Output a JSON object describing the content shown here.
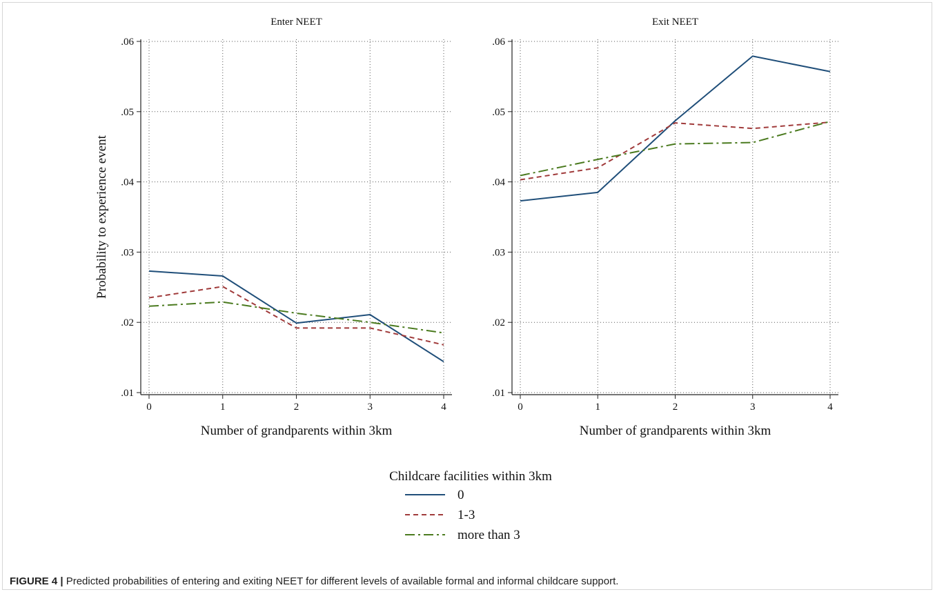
{
  "chart_data": [
    {
      "type": "line",
      "title": "Enter NEET",
      "xlabel": "Number of grandparents within 3km",
      "ylabel": "Probability to experience event",
      "x": [
        0,
        1,
        2,
        3,
        4
      ],
      "xticks": [
        "0",
        "1",
        "2",
        "3",
        "4"
      ],
      "yticks": [
        ".01",
        ".02",
        ".03",
        ".04",
        ".05",
        ".06"
      ],
      "ylim": [
        0.01,
        0.06
      ],
      "grid": true,
      "series": [
        {
          "name": "0",
          "values": [
            0.0273,
            0.0266,
            0.0199,
            0.0211,
            0.0144
          ]
        },
        {
          "name": "1-3",
          "values": [
            0.0235,
            0.0251,
            0.0192,
            0.0192,
            0.0168
          ]
        },
        {
          "name": "more than 3",
          "values": [
            0.0223,
            0.0229,
            0.0213,
            0.02,
            0.0185
          ]
        }
      ]
    },
    {
      "type": "line",
      "title": "Exit NEET",
      "xlabel": "Number of grandparents within 3km",
      "ylabel": "",
      "x": [
        0,
        1,
        2,
        3,
        4
      ],
      "xticks": [
        "0",
        "1",
        "2",
        "3",
        "4"
      ],
      "yticks": [
        ".01",
        ".02",
        ".03",
        ".04",
        ".05",
        ".06"
      ],
      "ylim": [
        0.01,
        0.06
      ],
      "grid": true,
      "series": [
        {
          "name": "0",
          "values": [
            0.0373,
            0.0385,
            0.0487,
            0.0579,
            0.0557
          ]
        },
        {
          "name": "1-3",
          "values": [
            0.0403,
            0.042,
            0.0484,
            0.0476,
            0.0485
          ]
        },
        {
          "name": "more than 3",
          "values": [
            0.0409,
            0.0432,
            0.0454,
            0.0456,
            0.0486
          ]
        }
      ]
    }
  ],
  "legend": {
    "title": "Childcare facilities within 3km",
    "placement": "bottom-center",
    "items": [
      {
        "label": "0",
        "color": "#1f4e79",
        "dash": "solid"
      },
      {
        "label": "1-3",
        "color": "#a03a3a",
        "dash": "dash"
      },
      {
        "label": "more than 3",
        "color": "#4a7a1e",
        "dash": "dashdot"
      }
    ]
  },
  "caption": {
    "label": "FIGURE 4 |",
    "text": " Predicted probabilities of entering and exiting NEET for different levels of available formal and informal childcare support."
  }
}
